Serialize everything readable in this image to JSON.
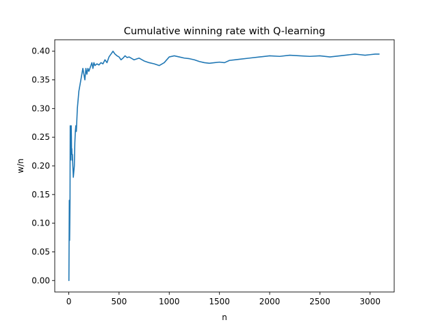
{
  "chart_data": {
    "type": "line",
    "title": "Cumulative winning rate with Q-learning",
    "xlabel": "n",
    "ylabel": "w/n",
    "xlim": [
      -140,
      3240
    ],
    "ylim": [
      -0.02,
      0.42
    ],
    "xticks": [
      0,
      500,
      1000,
      1500,
      2000,
      2500,
      3000
    ],
    "xtick_labels": [
      "0",
      "500",
      "1000",
      "1500",
      "2000",
      "2500",
      "3000"
    ],
    "yticks": [
      0.0,
      0.05,
      0.1,
      0.15,
      0.2,
      0.25,
      0.3,
      0.35,
      0.4
    ],
    "ytick_labels": [
      "0.00",
      "0.05",
      "0.10",
      "0.15",
      "0.20",
      "0.25",
      "0.30",
      "0.35",
      "0.40"
    ],
    "grid": false,
    "line_color": "#1f77b4",
    "series": [
      {
        "x": [
          1,
          5,
          8,
          10,
          12,
          14,
          16,
          18,
          20,
          22,
          24,
          26,
          28,
          30,
          33,
          36,
          40,
          45,
          50,
          55,
          60,
          65,
          70,
          75,
          80,
          85,
          90,
          95,
          100,
          110,
          120,
          130,
          140,
          150,
          160,
          170,
          180,
          190,
          200,
          210,
          220,
          230,
          240,
          250,
          260,
          280,
          300,
          320,
          340,
          360,
          380,
          400,
          420,
          440,
          460,
          480,
          500,
          520,
          540,
          560,
          580,
          600,
          650,
          700,
          750,
          800,
          850,
          900,
          950,
          1000,
          1050,
          1100,
          1150,
          1200,
          1250,
          1300,
          1350,
          1400,
          1450,
          1500,
          1550,
          1600,
          1650,
          1700,
          1800,
          1900,
          2000,
          2100,
          2200,
          2300,
          2400,
          2500,
          2600,
          2700,
          2800,
          2850,
          2900,
          2950,
          3000,
          3050,
          3090
        ],
        "y": [
          0.0,
          0.14,
          0.07,
          0.1,
          0.14,
          0.27,
          0.25,
          0.21,
          0.25,
          0.23,
          0.27,
          0.25,
          0.22,
          0.23,
          0.21,
          0.22,
          0.2,
          0.18,
          0.19,
          0.2,
          0.24,
          0.26,
          0.27,
          0.26,
          0.28,
          0.3,
          0.31,
          0.32,
          0.33,
          0.34,
          0.35,
          0.36,
          0.37,
          0.36,
          0.35,
          0.37,
          0.36,
          0.37,
          0.365,
          0.37,
          0.375,
          0.38,
          0.37,
          0.38,
          0.375,
          0.378,
          0.376,
          0.38,
          0.378,
          0.385,
          0.38,
          0.39,
          0.395,
          0.4,
          0.395,
          0.392,
          0.39,
          0.385,
          0.388,
          0.392,
          0.389,
          0.39,
          0.385,
          0.388,
          0.383,
          0.38,
          0.378,
          0.375,
          0.38,
          0.39,
          0.392,
          0.39,
          0.388,
          0.387,
          0.385,
          0.382,
          0.38,
          0.379,
          0.38,
          0.381,
          0.38,
          0.384,
          0.385,
          0.386,
          0.388,
          0.39,
          0.392,
          0.391,
          0.393,
          0.392,
          0.391,
          0.392,
          0.39,
          0.392,
          0.394,
          0.395,
          0.394,
          0.393,
          0.394,
          0.395,
          0.395
        ]
      }
    ]
  }
}
